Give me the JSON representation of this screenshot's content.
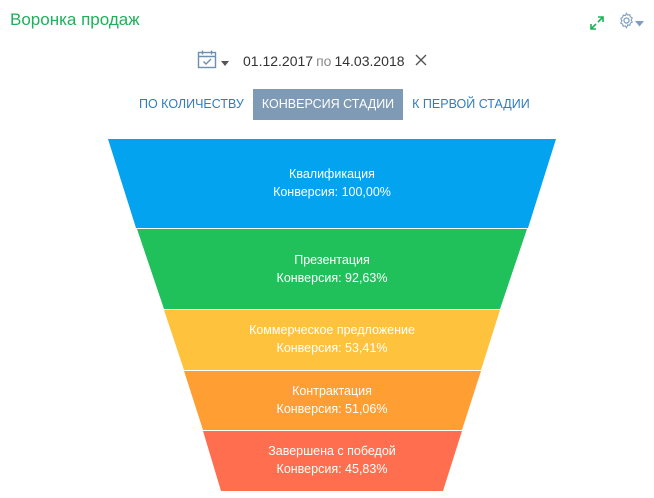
{
  "widget": {
    "title": "Воронка продаж"
  },
  "header_icons": {
    "expand": "expand-icon",
    "settings": "gear-icon",
    "dropdown": "chevron-down-icon"
  },
  "filter": {
    "calendar_icon": "calendar-icon",
    "date_from": "01.12.2017",
    "separator": "по",
    "date_to": "14.03.2018",
    "clear_icon": "close-icon"
  },
  "tabs": [
    {
      "label": "ПО КОЛИЧЕСТВУ",
      "active": false
    },
    {
      "label": "КОНВЕРСИЯ СТАДИИ",
      "active": true
    },
    {
      "label": "К ПЕРВОЙ СТАДИИ",
      "active": false
    }
  ],
  "colors": {
    "title": "#1fb05a",
    "accent_tab": "#7f9ab5",
    "link_tab": "#2f7dbf"
  },
  "funnel": [
    {
      "stage": "Квалификация",
      "conversion": "Конверсия: 100,00%",
      "color": "#03a3f0"
    },
    {
      "stage": "Презентация",
      "conversion": "Конверсия: 92,63%",
      "color": "#20c05a"
    },
    {
      "stage": "Коммерческое предложение",
      "conversion": "Конверсия: 53,41%",
      "color": "#ffc23d"
    },
    {
      "stage": "Контрактация",
      "conversion": "Конверсия: 51,06%",
      "color": "#ff9e33"
    },
    {
      "stage": "Завершена с победой",
      "conversion": "Конверсия: 45,83%",
      "color": "#ff6f4f"
    }
  ]
}
